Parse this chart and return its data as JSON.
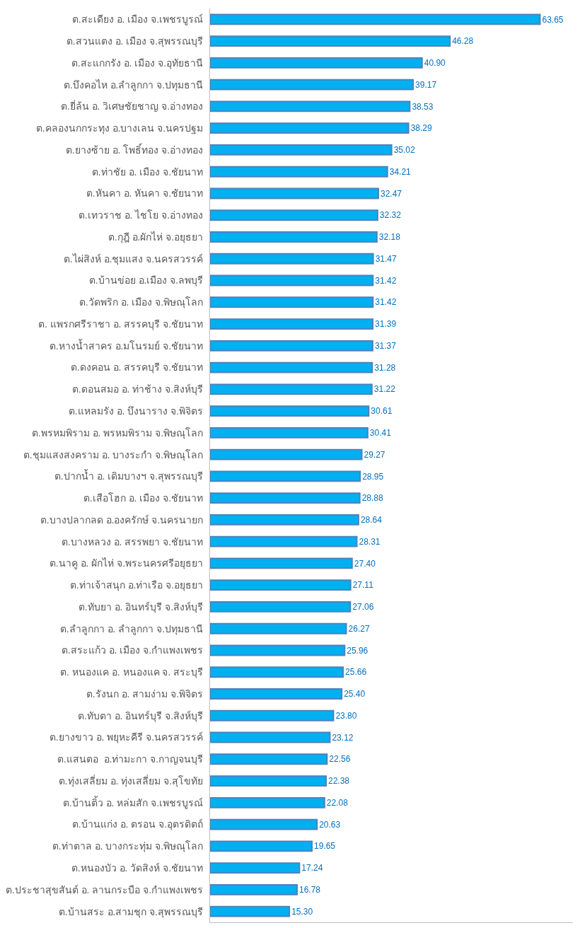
{
  "chart_data": {
    "type": "bar",
    "orientation": "horizontal",
    "tick_labels": "y",
    "xlim": [
      0,
      70
    ],
    "categories": [
      "ต.สะเดียง อ. เมือง จ.เพชรบูรณ์",
      "ต.สวนแตง อ. เมือง จ.สุพรรณบุรี",
      "ต.สะแกกรัง อ. เมือง จ.อุทัยธานี",
      "ต.บึงคอไห อ.ลำลูกกา จ.ปทุมธานี",
      "ต.ยี่ล้น อ. วิเศษชัยชาญ จ.อ่างทอง",
      "ต.คลองนกกระทุง อ.บางเลน จ.นครปฐม",
      "ต.ยางซ้าย อ. โพธิ์ทอง จ.อ่างทอง",
      "ต.ท่าชัย อ. เมือง จ.ชัยนาท",
      "ต.หันคา อ. หันคา จ.ชัยนาท",
      "ต.เทวราช อ. ไชโย จ.อ่างทอง",
      "ต.กุฎี อ.ผักไห่ จ.อยุธยา",
      "ต.ไผ่สิงห์ อ.ชุมแสง จ.นครสวรรค์",
      "ต.บ้านข่อย อ.เมือง จ.ลพบุรี",
      "ต.วัดพริก อ. เมือง จ.พิษณุโลก",
      "ต. แพรกศรีราชา อ. สรรคบุรี จ.ชัยนาท",
      "ต.หางน้ำสาคร อ.มโนรมย์ จ.ชัยนาท",
      "ต.ดงคอน อ. สรรคบุรี จ.ชัยนาท",
      "ต.ดอนสมอ อ. ท่าช้าง จ.สิงห์บุรี",
      "ต.แหลมรัง อ. บึงนาราง จ.พิจิตร",
      "ต.พรหมพิราม อ. พรหมพิราม จ.พิษณุโลก",
      "ต.ชุมแสงสงคราม อ. บางระกำ จ.พิษณุโลก",
      "ต.ปากน้ำ อ. เดิมบางฯ จ.สุพรรณบุรี",
      "ต.เสือโฮก อ. เมือง จ.ชัยนาท",
      "ต.บางปลากลด อ.องครักษ์ จ.นครนายก",
      "ต.บางหลวง อ. สรรพยา จ.ชัยนาท",
      "ต.นาคู อ. ผักไห่ จ.พระนครศรีอยุธยา",
      "ต.ท่าเจ้าสนุก อ.ท่าเรือ จ.อยุธยา",
      "ต.ทับยา อ. อินทร์บุรี จ.สิงห์บุรี",
      "ต.ลำลูกกา อ. ลำลูกกา จ.ปทุมธานี",
      "ต.สระแก้ว อ. เมือง จ.กำแพงเพชร",
      "ต. หนองแค อ. หนองแค จ. สระบุรี",
      "ต.รังนก อ. สามง่าม จ.พิจิตร",
      "ต.ทับตา อ. อินทร์บุรี จ.สิงห์บุรี",
      "ต.ยางขาว อ. พยุหะคีรี จ.นครสวรรค์",
      "ต.แสนตอ  อ.ท่ามะกา จ.กาญจนบุรี",
      "ต.ทุ่งเสลี่ยม อ. ทุ่งเสลี่ยม จ.สุโขทัย",
      "ต.บ้านติ้ว อ. หล่มสัก จ.เพชรบูรณ์",
      "ต.บ้านแก่ง อ. ตรอน จ.อุตรดิตถ์",
      "ต.ท่าตาล อ. บางกระทุ่ม จ.พิษณุโลก",
      "ต.หนองบัว อ. วัดสิงห์ จ.ชัยนาท",
      "ต.ประชาสุขสันต์ อ. ลานกระบือ จ.กำแพงเพชร",
      "ต.บ้านสระ อ.สามชุก จ.สุพรรณบุรี"
    ],
    "series": [
      {
        "color": "#00b0f0",
        "values": [
          63.65,
          46.28,
          40.9,
          39.17,
          38.53,
          38.29,
          35.02,
          34.21,
          32.47,
          32.32,
          32.18,
          31.47,
          31.42,
          31.42,
          31.39,
          31.37,
          31.28,
          31.22,
          30.61,
          30.41,
          29.27,
          28.95,
          28.88,
          28.64,
          28.31,
          27.4,
          27.11,
          27.06,
          26.27,
          25.96,
          25.66,
          25.4,
          23.8,
          23.12,
          22.56,
          22.38,
          22.08,
          20.63,
          19.65,
          17.24,
          16.78,
          15.3
        ],
        "value_labels": [
          "63.65",
          "46.28",
          "40.90",
          "39.17",
          "38.53",
          "38.29",
          "35.02",
          "34.21",
          "32.47",
          "32.32",
          "32.18",
          "31.47",
          "31.42",
          "31.42",
          "31.39",
          "31.37",
          "31.28",
          "31.22",
          "30.61",
          "30.41",
          "29.27",
          "28.95",
          "28.88",
          "28.64",
          "28.31",
          "27.40",
          "27.11",
          "27.06",
          "26.27",
          "25.96",
          "25.66",
          "25.40",
          "23.80",
          "23.12",
          "22.56",
          "22.38",
          "22.08",
          "20.63",
          "19.65",
          "17.24",
          "16.78",
          "15.30"
        ]
      }
    ]
  }
}
